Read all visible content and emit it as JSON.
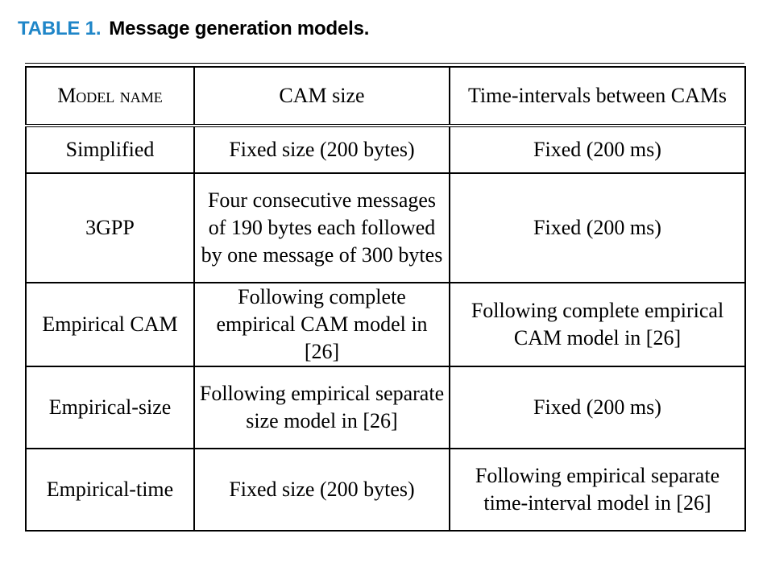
{
  "caption": {
    "label": "TABLE 1.",
    "title": "Message generation models."
  },
  "table": {
    "headers": [
      "Model name",
      "CAM size",
      "Time-intervals between CAMs"
    ],
    "rows": [
      [
        "Simplified",
        "Fixed size (200 bytes)",
        "Fixed (200 ms)"
      ],
      [
        "3GPP",
        "Four consecutive messages of 190 bytes each followed by one message of 300 bytes",
        "Fixed (200 ms)"
      ],
      [
        "Empirical CAM",
        "Following complete empirical CAM model in [26]",
        "Following complete empirical CAM model in [26]"
      ],
      [
        "Empirical-size",
        "Following empirical separate size model in [26]",
        "Fixed (200 ms)"
      ],
      [
        "Empirical-time",
        "Fixed size (200 bytes)",
        "Following empirical separate time-interval model in [26]"
      ]
    ]
  }
}
